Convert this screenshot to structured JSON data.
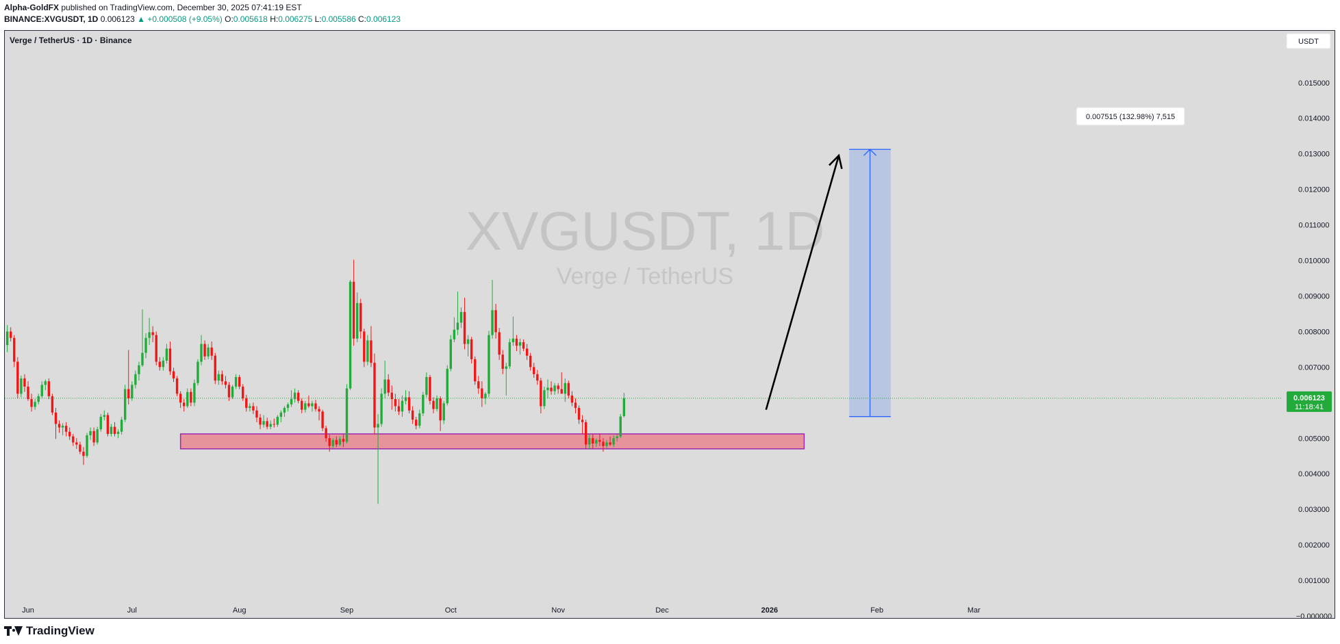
{
  "header": {
    "author": "Alpha-GoldFX",
    "published_text": "published on TradingView.com, December 30, 2025 07:41:19 EST",
    "symbol": "BINANCE:XVGUSDT, 1D",
    "last_price": "0.006123",
    "change": "+0.000508 (+9.05%)",
    "open_label": "O:",
    "open": "0.005618",
    "high_label": "H:",
    "high": "0.006275",
    "low_label": "L:",
    "low": "0.005586",
    "close_label": "C:",
    "close": "0.006123"
  },
  "chart_title": "Verge / TetherUS · 1D · Binance",
  "currency_button": "USDT",
  "watermark": {
    "symbol": "XVGUSDT, 1D",
    "name": "Verge / TetherUS"
  },
  "price_tag": {
    "value": "0.006123",
    "countdown": "11:18:41"
  },
  "measure_label": "0.007515 (132.98%) 7,515",
  "footer_logo": "TradingView",
  "colors": {
    "up": "#089981",
    "candle_up": "#22ab3a",
    "candle_down": "#f01616",
    "zone_fill": "#e7939b",
    "zone_border": "#9c27b0",
    "target_fill": "#b9c6e2",
    "target_line": "#2962ff",
    "background": "#dcdcdc",
    "last_price_line": "#22ab3a"
  },
  "chart_data": {
    "type": "candlestick",
    "title": "Verge / TetherUS · 1D · Binance",
    "y_axis": {
      "ticks": [
        "0.015000",
        "0.014000",
        "0.013000",
        "0.012000",
        "0.011000",
        "0.010000",
        "0.009000",
        "0.008000",
        "0.007000",
        "0.006000",
        "0.005000",
        "0.004000",
        "0.003000",
        "0.002000",
        "0.001000",
        "−0.000000"
      ],
      "range": [
        -5e-05,
        0.0155
      ]
    },
    "x_axis": {
      "ticks": [
        {
          "label": "Jun",
          "date": "2025-06-01",
          "bold": false
        },
        {
          "label": "Jul",
          "date": "2025-07-01",
          "bold": false
        },
        {
          "label": "Aug",
          "date": "2025-08-01",
          "bold": false
        },
        {
          "label": "Sep",
          "date": "2025-09-01",
          "bold": false
        },
        {
          "label": "Oct",
          "date": "2025-10-01",
          "bold": false
        },
        {
          "label": "Nov",
          "date": "2025-11-01",
          "bold": false
        },
        {
          "label": "Dec",
          "date": "2025-12-01",
          "bold": false
        },
        {
          "label": "2026",
          "date": "2026-01-01",
          "bold": true
        },
        {
          "label": "Feb",
          "date": "2026-02-01",
          "bold": false
        },
        {
          "label": "Mar",
          "date": "2026-03-01",
          "bold": false
        }
      ],
      "first_candle_date": "2025-05-26",
      "last_candle_date": "2025-12-30"
    },
    "last_price": 0.006123,
    "support_zone": {
      "start": "2025-07-15",
      "end": "2026-01-11",
      "low": 0.0047,
      "high": 0.00512
    },
    "target_box": {
      "start": "2026-01-24",
      "end": "2026-02-05",
      "low": 0.005608,
      "high": 0.013123,
      "change": 0.007515,
      "percent": "132.98%"
    },
    "arrow": {
      "from_date": "2025-12-31",
      "from_price": 0.0058,
      "to_date": "2026-01-21",
      "to_price": 0.01295
    },
    "candles": [
      [
        0.00762,
        0.00818,
        0.00742,
        0.008
      ],
      [
        0.008,
        0.00812,
        0.00772,
        0.00782
      ],
      [
        0.00782,
        0.0079,
        0.007,
        0.00715
      ],
      [
        0.00715,
        0.00728,
        0.00612,
        0.00625
      ],
      [
        0.00625,
        0.00676,
        0.00615,
        0.00668
      ],
      [
        0.00668,
        0.0068,
        0.0063,
        0.00645
      ],
      [
        0.00645,
        0.0066,
        0.00605,
        0.0061
      ],
      [
        0.0061,
        0.00625,
        0.00575,
        0.00588
      ],
      [
        0.00588,
        0.0061,
        0.0058,
        0.00602
      ],
      [
        0.00602,
        0.00625,
        0.00595,
        0.00618
      ],
      [
        0.00618,
        0.0066,
        0.00612,
        0.0065
      ],
      [
        0.0065,
        0.00665,
        0.00635,
        0.0066
      ],
      [
        0.0066,
        0.00668,
        0.0061,
        0.00618
      ],
      [
        0.00618,
        0.00625,
        0.00565,
        0.00572
      ],
      [
        0.00572,
        0.00585,
        0.00498,
        0.0054
      ],
      [
        0.0054,
        0.0055,
        0.00515,
        0.0053
      ],
      [
        0.0053,
        0.00542,
        0.00508,
        0.00535
      ],
      [
        0.00535,
        0.00545,
        0.00505,
        0.00518
      ],
      [
        0.00518,
        0.0053,
        0.00495,
        0.00505
      ],
      [
        0.00505,
        0.00512,
        0.00478,
        0.00488
      ],
      [
        0.00488,
        0.005,
        0.0047,
        0.00482
      ],
      [
        0.00482,
        0.0049,
        0.00455,
        0.00462
      ],
      [
        0.00462,
        0.00475,
        0.00425,
        0.0045
      ],
      [
        0.0045,
        0.00515,
        0.00445,
        0.00508
      ],
      [
        0.00508,
        0.0053,
        0.00495,
        0.0052
      ],
      [
        0.0052,
        0.0053,
        0.00478,
        0.00488
      ],
      [
        0.00488,
        0.00532,
        0.00482,
        0.00525
      ],
      [
        0.00525,
        0.00568,
        0.00518,
        0.0056
      ],
      [
        0.0056,
        0.00578,
        0.0055,
        0.00565
      ],
      [
        0.00565,
        0.00572,
        0.00505,
        0.00512
      ],
      [
        0.00512,
        0.0054,
        0.00505,
        0.00532
      ],
      [
        0.00532,
        0.00545,
        0.00505,
        0.00512
      ],
      [
        0.00512,
        0.00525,
        0.005,
        0.00518
      ],
      [
        0.00518,
        0.0056,
        0.0051,
        0.00552
      ],
      [
        0.00552,
        0.0065,
        0.00545,
        0.00638
      ],
      [
        0.00638,
        0.00748,
        0.00595,
        0.00612
      ],
      [
        0.00612,
        0.0066,
        0.00605,
        0.0065
      ],
      [
        0.0065,
        0.0069,
        0.0064,
        0.0068
      ],
      [
        0.0068,
        0.00715,
        0.00662,
        0.00705
      ],
      [
        0.00705,
        0.00862,
        0.007,
        0.0074
      ],
      [
        0.0074,
        0.00795,
        0.00725,
        0.00782
      ],
      [
        0.00782,
        0.00838,
        0.00762,
        0.00798
      ],
      [
        0.00798,
        0.00815,
        0.0077,
        0.0079
      ],
      [
        0.0079,
        0.008,
        0.00705,
        0.00715
      ],
      [
        0.00715,
        0.00728,
        0.0069,
        0.007
      ],
      [
        0.007,
        0.00728,
        0.0069,
        0.00718
      ],
      [
        0.00718,
        0.00765,
        0.0071,
        0.00752
      ],
      [
        0.00752,
        0.00772,
        0.00678,
        0.00688
      ],
      [
        0.00688,
        0.00698,
        0.00658,
        0.00668
      ],
      [
        0.00668,
        0.00675,
        0.00618,
        0.00625
      ],
      [
        0.00625,
        0.00632,
        0.00585,
        0.006
      ],
      [
        0.006,
        0.0061,
        0.00575,
        0.0059
      ],
      [
        0.0059,
        0.0064,
        0.00585,
        0.0063
      ],
      [
        0.0063,
        0.0064,
        0.0059,
        0.006
      ],
      [
        0.006,
        0.00665,
        0.0059,
        0.00655
      ],
      [
        0.00655,
        0.00722,
        0.00648,
        0.00715
      ],
      [
        0.00715,
        0.0079,
        0.00705,
        0.00765
      ],
      [
        0.00765,
        0.00775,
        0.0072,
        0.0073
      ],
      [
        0.0073,
        0.00765,
        0.00722,
        0.00755
      ],
      [
        0.00755,
        0.00772,
        0.0072,
        0.00732
      ],
      [
        0.00732,
        0.0074,
        0.00652,
        0.00662
      ],
      [
        0.00662,
        0.0069,
        0.0065,
        0.0068
      ],
      [
        0.0068,
        0.0069,
        0.0065,
        0.0066
      ],
      [
        0.0066,
        0.00675,
        0.0064,
        0.0065
      ],
      [
        0.0065,
        0.00658,
        0.00605,
        0.00615
      ],
      [
        0.00615,
        0.0065,
        0.0061,
        0.00645
      ],
      [
        0.00645,
        0.0068,
        0.00638,
        0.00672
      ],
      [
        0.00672,
        0.00678,
        0.00638,
        0.00645
      ],
      [
        0.00645,
        0.00652,
        0.00605,
        0.00612
      ],
      [
        0.00612,
        0.00622,
        0.00575,
        0.00585
      ],
      [
        0.00585,
        0.00598,
        0.00575,
        0.0059
      ],
      [
        0.0059,
        0.006,
        0.00568,
        0.00578
      ],
      [
        0.00578,
        0.0059,
        0.00545,
        0.00558
      ],
      [
        0.00558,
        0.00568,
        0.00525,
        0.00538
      ],
      [
        0.00538,
        0.00565,
        0.0053,
        0.00548
      ],
      [
        0.00548,
        0.00558,
        0.00525,
        0.00532
      ],
      [
        0.00532,
        0.0055,
        0.00525,
        0.0054
      ],
      [
        0.0054,
        0.00555,
        0.0053,
        0.00538
      ],
      [
        0.00538,
        0.00565,
        0.00532,
        0.0056
      ],
      [
        0.0056,
        0.00578,
        0.00545,
        0.00572
      ],
      [
        0.00572,
        0.0059,
        0.0056,
        0.00585
      ],
      [
        0.00585,
        0.006,
        0.00575,
        0.00595
      ],
      [
        0.00595,
        0.00635,
        0.00588,
        0.0061
      ],
      [
        0.0061,
        0.0064,
        0.006,
        0.00628
      ],
      [
        0.00628,
        0.00635,
        0.00598,
        0.00605
      ],
      [
        0.00605,
        0.00612,
        0.0057,
        0.0058
      ],
      [
        0.0058,
        0.00605,
        0.00572,
        0.00598
      ],
      [
        0.00598,
        0.0062,
        0.00585,
        0.0059
      ],
      [
        0.0059,
        0.00605,
        0.00575,
        0.00598
      ],
      [
        0.00598,
        0.00608,
        0.00575,
        0.00582
      ],
      [
        0.00582,
        0.0059,
        0.0055,
        0.00575
      ],
      [
        0.00575,
        0.0058,
        0.0052,
        0.00528
      ],
      [
        0.00528,
        0.00535,
        0.0049,
        0.005
      ],
      [
        0.005,
        0.0051,
        0.00462,
        0.00478
      ],
      [
        0.00478,
        0.005,
        0.00472,
        0.00495
      ],
      [
        0.00495,
        0.00505,
        0.00475,
        0.00482
      ],
      [
        0.00482,
        0.00505,
        0.00478,
        0.00498
      ],
      [
        0.00498,
        0.0051,
        0.00475,
        0.0049
      ],
      [
        0.0049,
        0.00652,
        0.00485,
        0.0064
      ],
      [
        0.0064,
        0.00945,
        0.00635,
        0.0094
      ],
      [
        0.0094,
        0.01002,
        0.0076,
        0.0078
      ],
      [
        0.0078,
        0.0091,
        0.0077,
        0.0088
      ],
      [
        0.0088,
        0.00892,
        0.0078,
        0.008
      ],
      [
        0.008,
        0.00808,
        0.007,
        0.00715
      ],
      [
        0.00715,
        0.0079,
        0.00705,
        0.00775
      ],
      [
        0.00775,
        0.00815,
        0.007,
        0.00712
      ],
      [
        0.00712,
        0.00738,
        0.0051,
        0.0053
      ],
      [
        0.0053,
        0.00568,
        0.00315,
        0.0054
      ],
      [
        0.0054,
        0.0064,
        0.00532,
        0.00625
      ],
      [
        0.00625,
        0.00718,
        0.00612,
        0.00665
      ],
      [
        0.00665,
        0.0068,
        0.00618,
        0.00628
      ],
      [
        0.00628,
        0.00648,
        0.0058,
        0.0061
      ],
      [
        0.0061,
        0.00625,
        0.00575,
        0.0059
      ],
      [
        0.0059,
        0.0061,
        0.00565,
        0.00575
      ],
      [
        0.00575,
        0.0062,
        0.0056,
        0.00605
      ],
      [
        0.00605,
        0.00635,
        0.00595,
        0.00615
      ],
      [
        0.00615,
        0.00632,
        0.0057,
        0.00578
      ],
      [
        0.00578,
        0.0059,
        0.0054,
        0.00552
      ],
      [
        0.00552,
        0.0056,
        0.00525,
        0.00535
      ],
      [
        0.00535,
        0.0058,
        0.00528,
        0.0057
      ],
      [
        0.0057,
        0.0063,
        0.00562,
        0.00622
      ],
      [
        0.00622,
        0.00685,
        0.00615,
        0.00672
      ],
      [
        0.00672,
        0.00678,
        0.00595,
        0.00605
      ],
      [
        0.00605,
        0.00615,
        0.0057,
        0.00582
      ],
      [
        0.00582,
        0.0062,
        0.00575,
        0.00612
      ],
      [
        0.00612,
        0.00618,
        0.0052,
        0.0055
      ],
      [
        0.0055,
        0.00605,
        0.0054,
        0.00598
      ],
      [
        0.00598,
        0.00705,
        0.00592,
        0.00695
      ],
      [
        0.00695,
        0.0079,
        0.00688,
        0.00778
      ],
      [
        0.00778,
        0.0084,
        0.0077,
        0.00805
      ],
      [
        0.00805,
        0.00912,
        0.0079,
        0.00825
      ],
      [
        0.00825,
        0.00868,
        0.0081,
        0.00855
      ],
      [
        0.00855,
        0.00895,
        0.0075,
        0.00765
      ],
      [
        0.00765,
        0.0079,
        0.0073,
        0.00778
      ],
      [
        0.00778,
        0.00785,
        0.0071,
        0.00722
      ],
      [
        0.00722,
        0.0073,
        0.0065,
        0.0066
      ],
      [
        0.0066,
        0.00675,
        0.00625,
        0.0064
      ],
      [
        0.0064,
        0.0066,
        0.00588,
        0.00612
      ],
      [
        0.00612,
        0.0063,
        0.00595,
        0.00625
      ],
      [
        0.00625,
        0.00802,
        0.00615,
        0.0079
      ],
      [
        0.0079,
        0.00945,
        0.0078,
        0.0086
      ],
      [
        0.0086,
        0.00878,
        0.0078,
        0.00798
      ],
      [
        0.00798,
        0.0081,
        0.0072,
        0.00735
      ],
      [
        0.00735,
        0.00748,
        0.0068,
        0.00695
      ],
      [
        0.00695,
        0.00712,
        0.0062,
        0.00702
      ],
      [
        0.00702,
        0.0078,
        0.00695,
        0.0077
      ],
      [
        0.0077,
        0.00842,
        0.0076,
        0.0078
      ],
      [
        0.0078,
        0.0079,
        0.00745,
        0.0076
      ],
      [
        0.0076,
        0.0078,
        0.00735,
        0.0077
      ],
      [
        0.0077,
        0.00778,
        0.00745,
        0.00752
      ],
      [
        0.00752,
        0.00765,
        0.0072,
        0.00732
      ],
      [
        0.00732,
        0.0074,
        0.0069,
        0.007
      ],
      [
        0.007,
        0.00712,
        0.0067,
        0.0068
      ],
      [
        0.0068,
        0.00692,
        0.0065,
        0.00662
      ],
      [
        0.00662,
        0.0067,
        0.0057,
        0.0059
      ],
      [
        0.0059,
        0.00645,
        0.00582,
        0.00635
      ],
      [
        0.00635,
        0.00665,
        0.00612,
        0.00642
      ],
      [
        0.00642,
        0.0066,
        0.00622,
        0.00632
      ],
      [
        0.00632,
        0.00655,
        0.00622,
        0.00648
      ],
      [
        0.00648,
        0.00655,
        0.00625,
        0.00638
      ],
      [
        0.00638,
        0.00685,
        0.0063,
        0.00625
      ],
      [
        0.00625,
        0.00668,
        0.00602,
        0.00655
      ],
      [
        0.00655,
        0.00662,
        0.00612,
        0.0062
      ],
      [
        0.0062,
        0.00632,
        0.0059,
        0.006
      ],
      [
        0.006,
        0.00612,
        0.0057,
        0.00585
      ],
      [
        0.00585,
        0.00592,
        0.0054,
        0.00552
      ],
      [
        0.00552,
        0.00565,
        0.00512,
        0.00545
      ],
      [
        0.00545,
        0.00552,
        0.0047,
        0.00482
      ],
      [
        0.00482,
        0.0051,
        0.0047,
        0.005
      ],
      [
        0.005,
        0.00512,
        0.0047,
        0.00485
      ],
      [
        0.00485,
        0.005,
        0.00475,
        0.00495
      ],
      [
        0.00495,
        0.00512,
        0.00478,
        0.0049
      ],
      [
        0.0049,
        0.005,
        0.00462,
        0.00478
      ],
      [
        0.00478,
        0.00495,
        0.00472,
        0.00488
      ],
      [
        0.00488,
        0.00505,
        0.00478,
        0.00482
      ],
      [
        0.00482,
        0.00508,
        0.00475,
        0.005
      ],
      [
        0.005,
        0.0051,
        0.0049,
        0.00505
      ],
      [
        0.00505,
        0.00568,
        0.005,
        0.00561
      ],
      [
        0.005618,
        0.006275,
        0.005586,
        0.006123
      ]
    ]
  }
}
